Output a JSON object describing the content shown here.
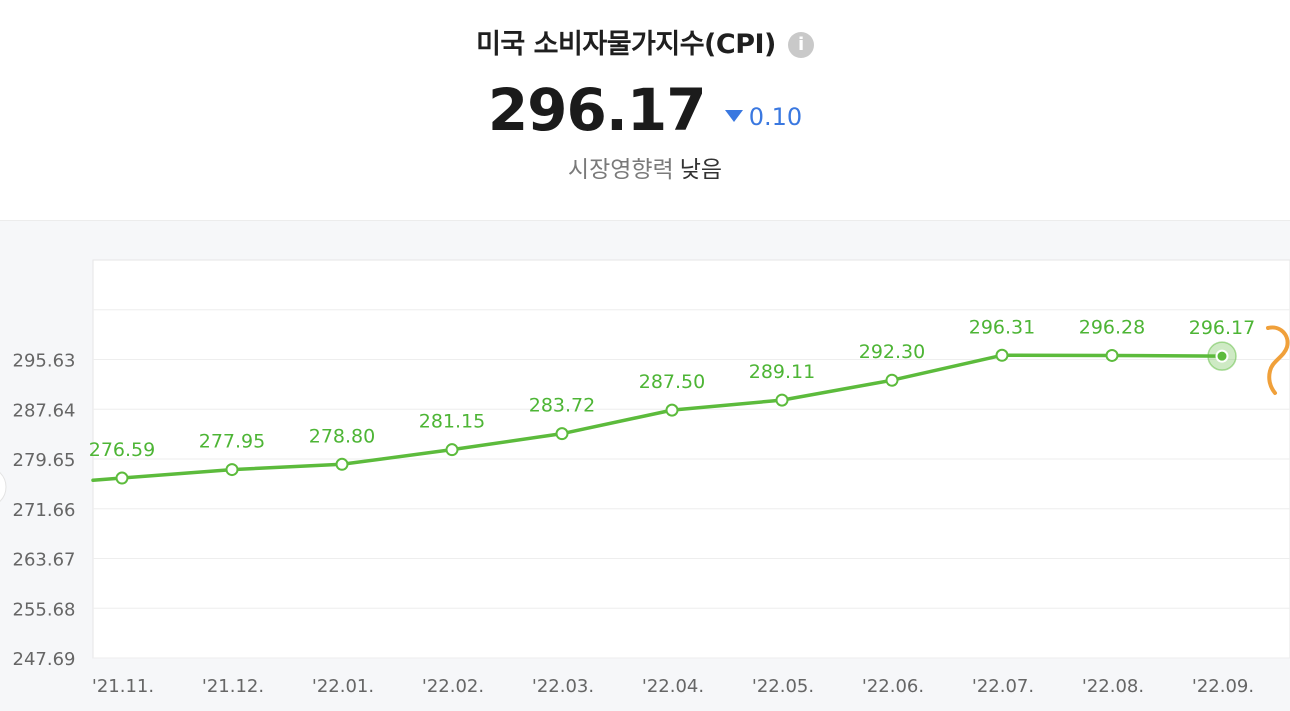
{
  "header": {
    "title": "미국 소비자물가지수(CPI)",
    "info_glyph": "i",
    "value": "296.17",
    "change": "0.10",
    "change_direction": "down",
    "impact_label": "시장영향력",
    "impact_value": "낮음"
  },
  "colors": {
    "line": "#5cbb3c",
    "label": "#4db535",
    "change": "#3a78e0",
    "axis_text": "#666666",
    "grid": "#eeeeee",
    "annotation": "#f0a03a"
  },
  "chart_data": {
    "type": "line",
    "title": "",
    "xlabel": "",
    "ylabel": "",
    "categories": [
      "'21.11.",
      "'21.12.",
      "'22.01.",
      "'22.02.",
      "'22.03.",
      "'22.04.",
      "'22.05.",
      "'22.06.",
      "'22.07.",
      "'22.08.",
      "'22.09."
    ],
    "series": [
      {
        "values": [
          276.59,
          277.95,
          278.8,
          281.15,
          283.72,
          287.5,
          289.11,
          292.3,
          296.31,
          296.28,
          296.17
        ],
        "labels": [
          "276.59",
          "277.95",
          "278.80",
          "281.15",
          "283.72",
          "287.50",
          "289.11",
          "292.30",
          "296.31",
          "296.28",
          "296.17"
        ]
      }
    ],
    "yticks": [
      "295.63",
      "287.64",
      "279.65",
      "271.66",
      "263.67",
      "255.68",
      "247.69"
    ],
    "ylim": [
      247.69,
      311.61
    ],
    "grid": true,
    "highlight_index": 10
  }
}
